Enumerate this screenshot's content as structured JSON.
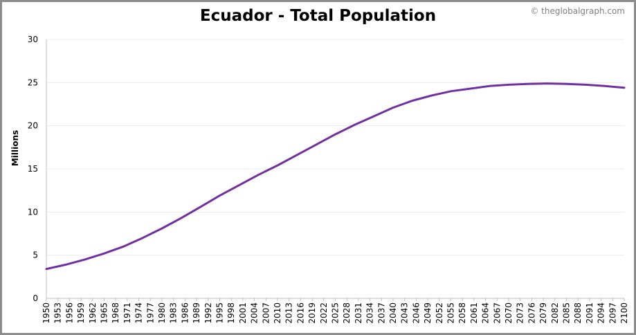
{
  "header": {
    "title": "Ecuador - Total Population",
    "credit": "© theglobalgraph.com"
  },
  "colors": {
    "line": "#7030a0",
    "grid": "#ececec",
    "axis": "#bfbfbf",
    "frame": "#8c8c8c"
  },
  "chart_data": {
    "type": "line",
    "title": "Ecuador - Total Population",
    "xlabel": "",
    "ylabel": "Millions",
    "ylim": [
      0,
      30
    ],
    "yticks": [
      0,
      5,
      10,
      15,
      20,
      25,
      30
    ],
    "xlim": [
      1950,
      2100
    ],
    "xticks": [
      1950,
      1953,
      1956,
      1959,
      1962,
      1965,
      1968,
      1971,
      1974,
      1977,
      1980,
      1983,
      1986,
      1989,
      1992,
      1995,
      1998,
      2001,
      2004,
      2007,
      2010,
      2013,
      2016,
      2019,
      2022,
      2025,
      2028,
      2031,
      2034,
      2037,
      2040,
      2043,
      2046,
      2049,
      2052,
      2055,
      2058,
      2061,
      2064,
      2067,
      2070,
      2073,
      2076,
      2079,
      2082,
      2085,
      2088,
      2091,
      2094,
      2097,
      2100
    ],
    "grid": true,
    "series": [
      {
        "x": [
          1950,
          1955,
          1960,
          1965,
          1970,
          1975,
          1980,
          1985,
          1990,
          1995,
          2000,
          2005,
          2010,
          2015,
          2020,
          2025,
          2030,
          2035,
          2040,
          2045,
          2050,
          2055,
          2060,
          2065,
          2070,
          2075,
          2080,
          2085,
          2090,
          2095,
          2100
        ],
        "values": [
          3.4,
          3.9,
          4.5,
          5.2,
          6.0,
          7.0,
          8.1,
          9.3,
          10.6,
          11.9,
          13.1,
          14.3,
          15.4,
          16.6,
          17.8,
          19.0,
          20.1,
          21.1,
          22.1,
          22.9,
          23.5,
          24.0,
          24.3,
          24.6,
          24.75,
          24.85,
          24.9,
          24.85,
          24.75,
          24.6,
          24.4
        ]
      }
    ]
  }
}
